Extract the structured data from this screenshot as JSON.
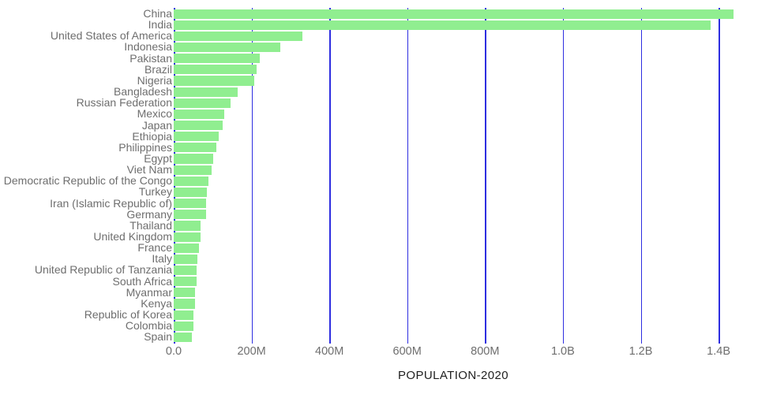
{
  "chart_data": {
    "type": "bar",
    "orientation": "horizontal",
    "title": "",
    "xlabel": "POPULATION-2020",
    "ylabel": "",
    "grid": true,
    "legend": "none",
    "xlim_millions": [
      0,
      1500
    ],
    "categories": [
      "China",
      "India",
      "United States of America",
      "Indonesia",
      "Pakistan",
      "Brazil",
      "Nigeria",
      "Bangladesh",
      "Russian Federation",
      "Mexico",
      "Japan",
      "Ethiopia",
      "Philippines",
      "Egypt",
      "Viet Nam",
      "Democratic Republic of the Congo",
      "Turkey",
      "Iran (Islamic Republic of)",
      "Germany",
      "Thailand",
      "United Kingdom",
      "France",
      "Italy",
      "United Republic of Tanzania",
      "South Africa",
      "Myanmar",
      "Kenya",
      "Republic of Korea",
      "Colombia",
      "Spain"
    ],
    "values_millions": [
      1439.3,
      1380.0,
      331.0,
      273.5,
      220.9,
      212.6,
      206.1,
      164.7,
      145.9,
      128.9,
      126.5,
      115.0,
      109.6,
      102.3,
      97.3,
      89.6,
      84.3,
      84.0,
      83.8,
      69.8,
      67.9,
      65.3,
      60.5,
      59.7,
      59.3,
      54.4,
      53.8,
      51.3,
      50.9,
      46.8
    ],
    "xticks": [
      {
        "value": 0,
        "label": "0.0"
      },
      {
        "value": 200,
        "label": "200M"
      },
      {
        "value": 400,
        "label": "400M"
      },
      {
        "value": 600,
        "label": "600M"
      },
      {
        "value": 800,
        "label": "800M"
      },
      {
        "value": 1000,
        "label": "1.0B"
      },
      {
        "value": 1200,
        "label": "1.2B"
      },
      {
        "value": 1400,
        "label": "1.4B"
      }
    ],
    "colors": {
      "bar": "#90EE90",
      "gridline": "#2e2ee0",
      "tick_label": "#6e6e6e",
      "category_label": "#6e6e6e",
      "axis_label": "#1f1f1f",
      "background": "#ffffff"
    }
  }
}
